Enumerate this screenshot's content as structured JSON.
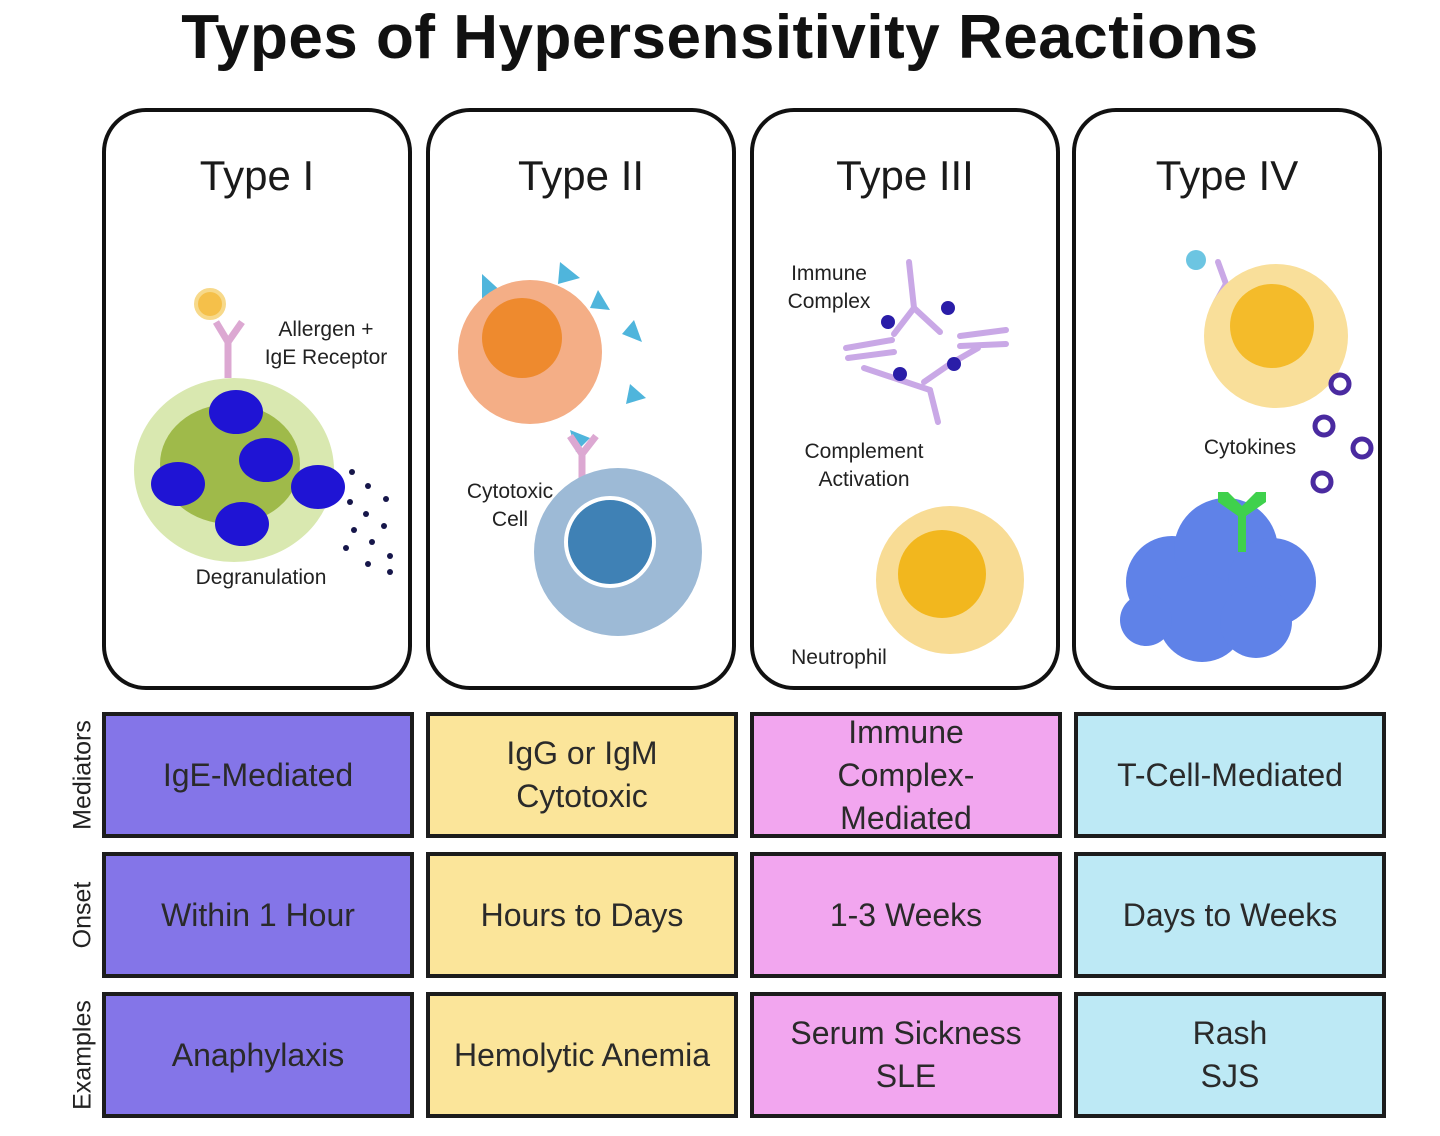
{
  "title": "Types of Hypersensitivity Reactions",
  "panels": [
    {
      "title": "Type I",
      "labels": [
        "Allergen +\nIgE Receptor",
        "Degranulation"
      ]
    },
    {
      "title": "Type II",
      "labels": [
        "Cytotoxic\nCell"
      ]
    },
    {
      "title": "Type III",
      "labels": [
        "Immune\nComplex",
        "Complement\nActivation",
        "Neutrophil"
      ]
    },
    {
      "title": "Type IV",
      "labels": [
        "Cytokines"
      ]
    }
  ],
  "row_labels": [
    "Mediators",
    "Onset",
    "Examples"
  ],
  "table": [
    [
      "IgE-Mediated",
      "IgG or IgM\nCytotoxic",
      "Immune\nComplex-\nMediated",
      "T-Cell-Mediated"
    ],
    [
      "Within 1 Hour",
      "Hours to Days",
      "1-3 Weeks",
      "Days to Weeks"
    ],
    [
      "Anaphylaxis",
      "Hemolytic Anemia",
      "Serum Sickness\nSLE",
      "Rash\nSJS"
    ]
  ],
  "colors": {
    "type_i": "#8475e8",
    "type_ii": "#fbe59a",
    "type_iii": "#f2a6ef",
    "type_iv": "#bde9f5"
  }
}
